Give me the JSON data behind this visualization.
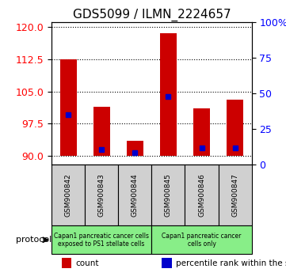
{
  "title": "GDS5099 / ILMN_2224657",
  "samples": [
    "GSM900842",
    "GSM900843",
    "GSM900844",
    "GSM900845",
    "GSM900846",
    "GSM900847"
  ],
  "bar_bottoms": [
    90,
    90,
    90,
    90,
    90,
    90
  ],
  "bar_tops": [
    112.5,
    101.5,
    93.5,
    118.5,
    101.0,
    103.0
  ],
  "blue_dot_y": [
    99.5,
    91.5,
    90.8,
    103.8,
    91.8,
    91.8
  ],
  "blue_dot_percentile": [
    30,
    5,
    2,
    45,
    6,
    7
  ],
  "ylim_left": [
    88,
    121
  ],
  "ylim_right": [
    0,
    100
  ],
  "yticks_left": [
    90,
    97.5,
    105,
    112.5,
    120
  ],
  "yticks_right": [
    0,
    25,
    50,
    75,
    100
  ],
  "bar_color": "#cc0000",
  "dot_color": "#0000cc",
  "grid_color": "#000000",
  "protocol_groups": [
    {
      "label": "Capan1 pancreatic cancer cells exposed to PS1 stellate cells",
      "count": 3,
      "color": "#aaffaa"
    },
    {
      "label": "Capan1 pancreatic cancer\ncells only",
      "count": 3,
      "color": "#aaffaa"
    }
  ],
  "legend_items": [
    {
      "color": "#cc0000",
      "label": "count"
    },
    {
      "color": "#0000cc",
      "label": "percentile rank within the sample"
    }
  ],
  "protocol_label": "protocol",
  "tick_label_fontsize": 9,
  "title_fontsize": 11
}
